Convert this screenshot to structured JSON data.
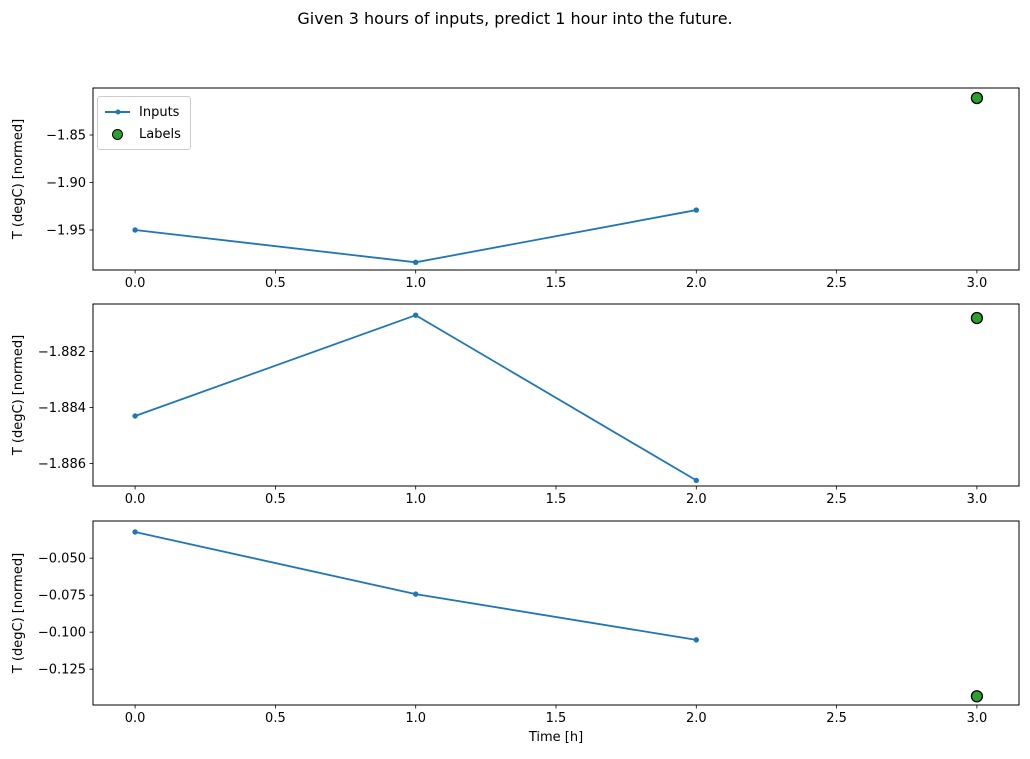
{
  "title": "Given 3 hours of inputs, predict 1 hour into the future.",
  "colors": {
    "inputs_line": "#1f77b4",
    "labels_fill": "#2ca02c",
    "labels_edge": "#000000",
    "spine": "#000000",
    "text": "#000000"
  },
  "legend": {
    "items": [
      {
        "label": "Inputs",
        "marker": "line-with-dot"
      },
      {
        "label": "Labels",
        "marker": "green-circle"
      }
    ]
  },
  "chart_data": [
    {
      "type": "line",
      "ylabel": "T (degC) [normed]",
      "x": [
        0,
        1,
        2
      ],
      "series": [
        {
          "name": "Inputs",
          "values": [
            -1.95,
            -1.984,
            -1.929
          ]
        }
      ],
      "label_point": {
        "name": "Labels",
        "x": 3,
        "y": -1.811
      },
      "xlim": [
        -0.15,
        3.15
      ],
      "ylim": [
        -1.9921,
        -1.8005
      ],
      "xticks": [
        {
          "v": 0.0,
          "label": "0.0"
        },
        {
          "v": 0.5,
          "label": "0.5"
        },
        {
          "v": 1.0,
          "label": "1.0"
        },
        {
          "v": 1.5,
          "label": "1.5"
        },
        {
          "v": 2.0,
          "label": "2.0"
        },
        {
          "v": 2.5,
          "label": "2.5"
        },
        {
          "v": 3.0,
          "label": "3.0"
        }
      ],
      "yticks": [
        {
          "v": -1.85,
          "label": "−1.85"
        },
        {
          "v": -1.9,
          "label": "−1.90"
        },
        {
          "v": -1.95,
          "label": "−1.95"
        }
      ],
      "legend": true,
      "xlabel": ""
    },
    {
      "type": "line",
      "ylabel": "T (degC) [normed]",
      "x": [
        0,
        1,
        2
      ],
      "series": [
        {
          "name": "Inputs",
          "values": [
            -1.8843,
            -1.8807,
            -1.8866
          ]
        }
      ],
      "label_point": {
        "name": "Labels",
        "x": 3,
        "y": -1.8808
      },
      "xlim": [
        -0.15,
        3.15
      ],
      "ylim": [
        -1.8868,
        -1.8803
      ],
      "xticks": [
        {
          "v": 0.0,
          "label": "0.0"
        },
        {
          "v": 0.5,
          "label": "0.5"
        },
        {
          "v": 1.0,
          "label": "1.0"
        },
        {
          "v": 1.5,
          "label": "1.5"
        },
        {
          "v": 2.0,
          "label": "2.0"
        },
        {
          "v": 2.5,
          "label": "2.5"
        },
        {
          "v": 3.0,
          "label": "3.0"
        }
      ],
      "yticks": [
        {
          "v": -1.882,
          "label": "−1.882"
        },
        {
          "v": -1.884,
          "label": "−1.884"
        },
        {
          "v": -1.886,
          "label": "−1.886"
        }
      ],
      "legend": false,
      "xlabel": ""
    },
    {
      "type": "line",
      "ylabel": "T (degC) [normed]",
      "x": [
        0,
        1,
        2
      ],
      "series": [
        {
          "name": "Inputs",
          "values": [
            -0.0323,
            -0.0743,
            -0.1052
          ]
        }
      ],
      "label_point": {
        "name": "Labels",
        "x": 3,
        "y": -0.1433
      },
      "xlim": [
        -0.15,
        3.15
      ],
      "ylim": [
        -0.1492,
        -0.0249
      ],
      "xticks": [
        {
          "v": 0.0,
          "label": "0.0"
        },
        {
          "v": 0.5,
          "label": "0.5"
        },
        {
          "v": 1.0,
          "label": "1.0"
        },
        {
          "v": 1.5,
          "label": "1.5"
        },
        {
          "v": 2.0,
          "label": "2.0"
        },
        {
          "v": 2.5,
          "label": "2.5"
        },
        {
          "v": 3.0,
          "label": "3.0"
        }
      ],
      "yticks": [
        {
          "v": -0.05,
          "label": "−0.050"
        },
        {
          "v": -0.075,
          "label": "−0.075"
        },
        {
          "v": -0.1,
          "label": "−0.100"
        },
        {
          "v": -0.125,
          "label": "−0.125"
        }
      ],
      "legend": false,
      "xlabel": "Time [h]"
    }
  ]
}
